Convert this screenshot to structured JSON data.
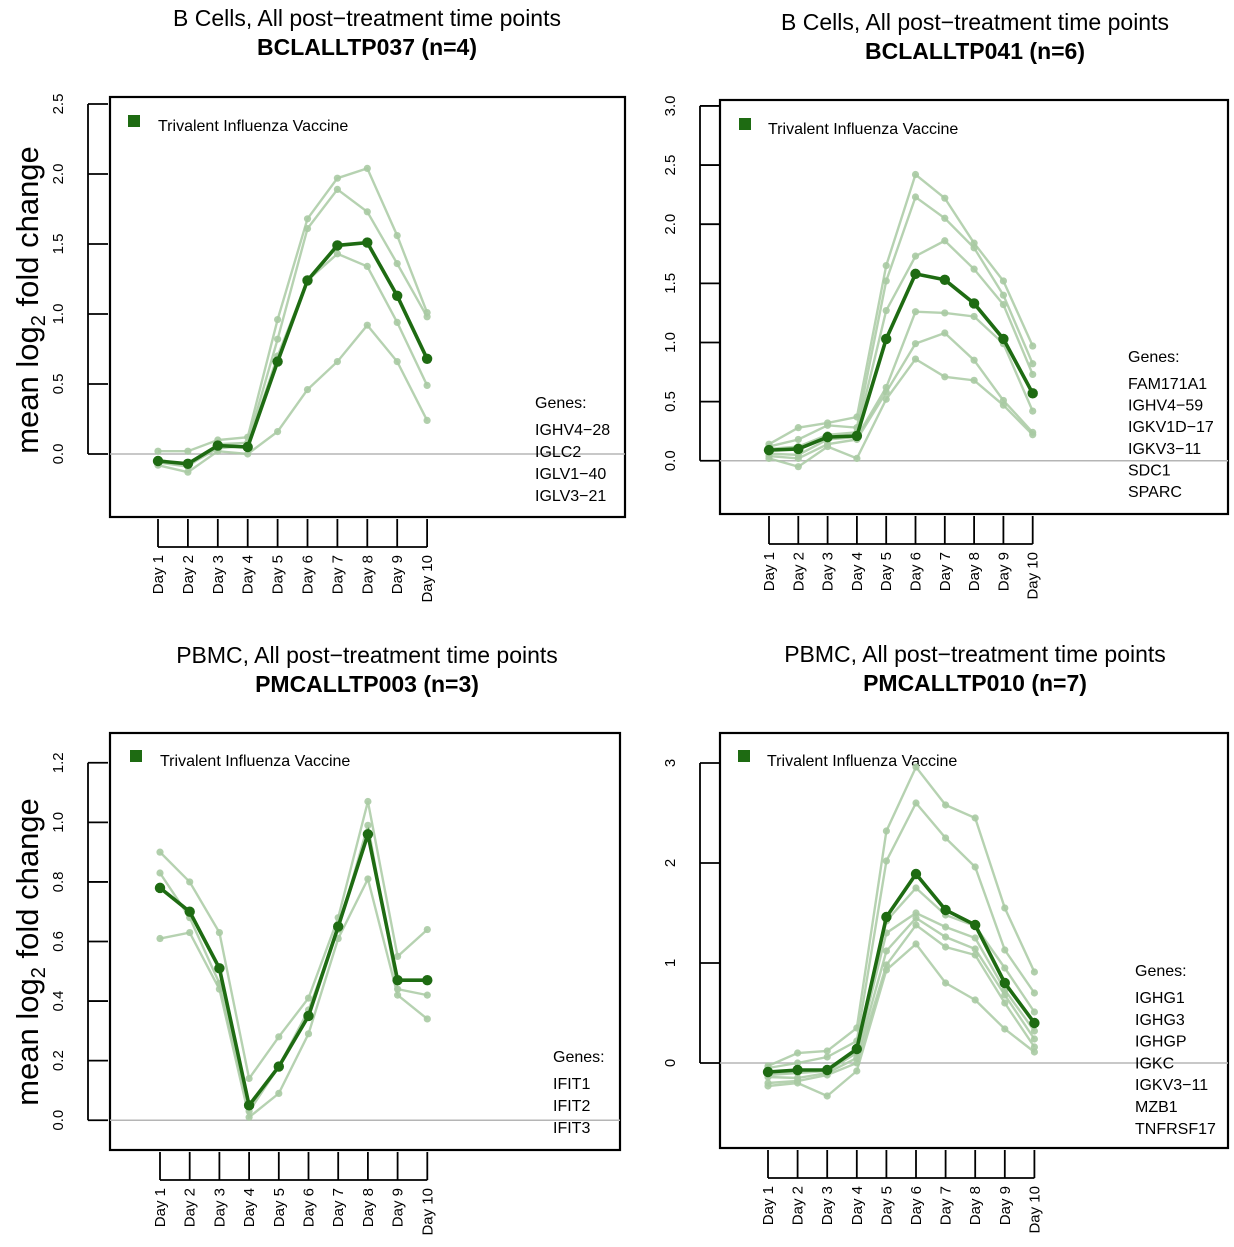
{
  "chart_data": [
    {
      "type": "line",
      "title": "B Cells, All post−treatment time points",
      "subtitle": "BCLALLTP037 (n=4)",
      "ylabel": "mean log2 fold change",
      "ylim": [
        -0.45,
        2.55
      ],
      "yticks": [
        "0.0",
        "0.5",
        "1.0",
        "1.5",
        "2.0",
        "2.5"
      ],
      "categories": [
        "Day 1",
        "Day 2",
        "Day 3",
        "Day 4",
        "Day 5",
        "Day 6",
        "Day 7",
        "Day 8",
        "Day 9",
        "Day 10"
      ],
      "legend": "Trivalent Influenza Vaccine",
      "genes_title": "Genes:",
      "genes": [
        "IGHV4−28",
        "IGLC2",
        "IGLV1−40",
        "IGLV3−21"
      ],
      "mean": [
        -0.05,
        -0.07,
        0.06,
        0.05,
        0.66,
        1.24,
        1.49,
        1.51,
        1.13,
        0.68
      ],
      "genes_series": [
        [
          0.02,
          0.02,
          0.1,
          0.12,
          0.96,
          1.68,
          1.97,
          2.04,
          1.56,
          1.01
        ],
        [
          -0.06,
          -0.09,
          0.07,
          0.08,
          0.82,
          1.61,
          1.89,
          1.73,
          1.36,
          0.98
        ],
        [
          -0.04,
          -0.08,
          0.04,
          0.06,
          0.7,
          1.24,
          1.43,
          1.34,
          0.94,
          0.49
        ],
        [
          -0.08,
          -0.13,
          0.02,
          0.0,
          0.16,
          0.46,
          0.66,
          0.92,
          0.66,
          0.24
        ]
      ],
      "colors": {
        "mean": "#1e6b12",
        "gene": "#a9caa3",
        "refline": "#b5b5b5",
        "legend_box": "#1e6b12"
      }
    },
    {
      "type": "line",
      "title": "B Cells, All post−treatment time points",
      "subtitle": "BCLALLTP041 (n=6)",
      "ylabel": "",
      "ylim": [
        -0.45,
        3.05
      ],
      "yticks": [
        "0.0",
        "0.5",
        "1.0",
        "1.5",
        "2.0",
        "2.5",
        "3.0"
      ],
      "categories": [
        "Day 1",
        "Day 2",
        "Day 3",
        "Day 4",
        "Day 5",
        "Day 6",
        "Day 7",
        "Day 8",
        "Day 9",
        "Day 10"
      ],
      "legend": "Trivalent Influenza Vaccine",
      "genes_title": "Genes:",
      "genes": [
        "FAM171A1",
        "IGHV4−59",
        "IGKV1D−17",
        "IGKV3−11",
        "SDC1",
        "SPARC"
      ],
      "mean": [
        0.09,
        0.1,
        0.2,
        0.21,
        1.03,
        1.58,
        1.53,
        1.33,
        1.03,
        0.57
      ],
      "genes_series": [
        [
          0.14,
          0.28,
          0.32,
          0.37,
          1.65,
          2.42,
          2.22,
          1.84,
          1.52,
          0.97
        ],
        [
          0.12,
          0.18,
          0.3,
          0.28,
          1.52,
          2.23,
          2.05,
          1.8,
          1.4,
          0.82
        ],
        [
          0.1,
          0.12,
          0.22,
          0.24,
          1.27,
          1.73,
          1.86,
          1.62,
          1.32,
          0.73
        ],
        [
          0.06,
          0.05,
          0.18,
          0.2,
          0.62,
          1.26,
          1.25,
          1.22,
          0.99,
          0.42
        ],
        [
          0.04,
          0.02,
          0.14,
          0.18,
          0.58,
          0.99,
          1.08,
          0.85,
          0.51,
          0.24
        ],
        [
          0.02,
          -0.05,
          0.12,
          0.02,
          0.52,
          0.86,
          0.71,
          0.68,
          0.47,
          0.22
        ]
      ],
      "colors": {
        "mean": "#1e6b12",
        "gene": "#a9caa3",
        "refline": "#b5b5b5",
        "legend_box": "#1e6b12"
      }
    },
    {
      "type": "line",
      "title": "PBMC, All post−treatment time points",
      "subtitle": "PMCALLTP003 (n=3)",
      "ylabel": "mean log2 fold change",
      "ylim": [
        -0.1,
        1.3
      ],
      "yticks": [
        "0.0",
        "0.2",
        "0.4",
        "0.6",
        "0.8",
        "1.0",
        "1.2"
      ],
      "categories": [
        "Day 1",
        "Day 2",
        "Day 3",
        "Day 4",
        "Day 5",
        "Day 6",
        "Day 7",
        "Day 8",
        "Day 9",
        "Day 10"
      ],
      "legend": "Trivalent Influenza Vaccine",
      "genes_title": "Genes:",
      "genes": [
        "IFIT1",
        "IFIT2",
        "IFIT3"
      ],
      "mean": [
        0.78,
        0.7,
        0.51,
        0.05,
        0.18,
        0.35,
        0.65,
        0.96,
        0.47,
        0.47
      ],
      "genes_series": [
        [
          0.9,
          0.8,
          0.63,
          0.14,
          0.28,
          0.41,
          0.68,
          1.07,
          0.55,
          0.64
        ],
        [
          0.83,
          0.68,
          0.46,
          0.03,
          0.18,
          0.37,
          0.64,
          0.99,
          0.44,
          0.42
        ],
        [
          0.61,
          0.63,
          0.44,
          0.01,
          0.09,
          0.29,
          0.61,
          0.81,
          0.42,
          0.34
        ]
      ],
      "colors": {
        "mean": "#1e6b12",
        "gene": "#a9caa3",
        "refline": "#b5b5b5",
        "legend_box": "#1e6b12"
      }
    },
    {
      "type": "line",
      "title": "PBMC, All post−treatment time points",
      "subtitle": "PMCALLTP010 (n=7)",
      "ylabel": "",
      "ylim": [
        -0.85,
        3.3
      ],
      "yticks": [
        "0",
        "1",
        "2",
        "3"
      ],
      "categories": [
        "Day 1",
        "Day 2",
        "Day 3",
        "Day 4",
        "Day 5",
        "Day 6",
        "Day 7",
        "Day 8",
        "Day 9",
        "Day 10"
      ],
      "legend": "Trivalent Influenza Vaccine",
      "genes_title": "Genes:",
      "genes": [
        "IGHG1",
        "IGHG3",
        "IGHGP",
        "IGKC",
        "IGKV3−11",
        "MZB1",
        "TNFRSF17"
      ],
      "mean": [
        -0.09,
        -0.07,
        -0.07,
        0.14,
        1.46,
        1.89,
        1.53,
        1.38,
        0.8,
        0.4
      ],
      "genes_series": [
        [
          -0.03,
          0.1,
          0.12,
          0.35,
          2.32,
          2.96,
          2.58,
          2.45,
          1.55,
          0.91
        ],
        [
          -0.05,
          0.0,
          0.06,
          0.22,
          2.02,
          2.6,
          2.25,
          1.96,
          1.13,
          0.7
        ],
        [
          -0.1,
          -0.09,
          -0.06,
          0.14,
          1.42,
          1.75,
          1.48,
          1.37,
          0.95,
          0.51
        ],
        [
          -0.12,
          -0.1,
          -0.08,
          0.1,
          1.3,
          1.5,
          1.36,
          1.25,
          0.73,
          0.32
        ],
        [
          -0.14,
          -0.15,
          -0.1,
          0.05,
          1.12,
          1.45,
          1.26,
          1.14,
          0.68,
          0.24
        ],
        [
          -0.2,
          -0.18,
          -0.12,
          0.0,
          0.98,
          1.38,
          1.16,
          1.08,
          0.6,
          0.16
        ],
        [
          -0.23,
          -0.2,
          -0.33,
          -0.08,
          0.93,
          1.19,
          0.8,
          0.63,
          0.34,
          0.11
        ]
      ],
      "colors": {
        "mean": "#1e6b12",
        "gene": "#a9caa3",
        "refline": "#b5b5b5",
        "legend_box": "#1e6b12"
      }
    }
  ]
}
